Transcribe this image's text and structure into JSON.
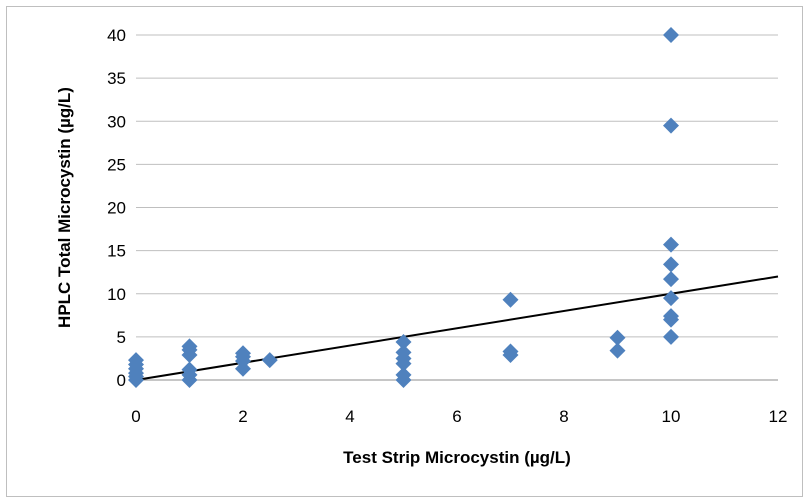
{
  "chart_data": {
    "type": "scatter",
    "title": "",
    "xlabel": "Test Strip Microcystin (µg/L)",
    "ylabel": "HPLC Total Microcystin (µg/L)",
    "xlim": [
      0,
      12
    ],
    "ylim": [
      0,
      40
    ],
    "xticks": [
      "0",
      "2",
      "4",
      "6",
      "8",
      "10",
      "12"
    ],
    "yticks": [
      "0",
      "5",
      "10",
      "15",
      "20",
      "25",
      "30",
      "35",
      "40"
    ],
    "grid": "horizontal",
    "legend": "none",
    "marker_color": "#4f81bd",
    "trendline_color": "#000000",
    "series": [
      {
        "points": [
          [
            0,
            0.0
          ],
          [
            0,
            0.4
          ],
          [
            0,
            0.8
          ],
          [
            0,
            1.3
          ],
          [
            0,
            1.8
          ],
          [
            0,
            2.3
          ],
          [
            1,
            0.0
          ],
          [
            1,
            0.6
          ],
          [
            1,
            1.2
          ],
          [
            1,
            2.9
          ],
          [
            1,
            3.5
          ],
          [
            1,
            3.9
          ],
          [
            2,
            1.3
          ],
          [
            2,
            2.2
          ],
          [
            2,
            2.7
          ],
          [
            2,
            3.1
          ],
          [
            2.5,
            2.3
          ],
          [
            5,
            0.0
          ],
          [
            5,
            0.6
          ],
          [
            5,
            1.9
          ],
          [
            5,
            2.5
          ],
          [
            5,
            3.2
          ],
          [
            5,
            4.4
          ],
          [
            7,
            2.9
          ],
          [
            7,
            3.3
          ],
          [
            7,
            9.3
          ],
          [
            9,
            3.4
          ],
          [
            9,
            4.9
          ],
          [
            10,
            5.0
          ],
          [
            10,
            7.0
          ],
          [
            10,
            7.4
          ],
          [
            10,
            9.5
          ],
          [
            10,
            11.7
          ],
          [
            10,
            13.4
          ],
          [
            10,
            15.7
          ],
          [
            10,
            29.5
          ],
          [
            10,
            40.0
          ]
        ]
      }
    ],
    "trendline": {
      "type": "linear",
      "slope": 1.0,
      "intercept": 0.0
    }
  }
}
